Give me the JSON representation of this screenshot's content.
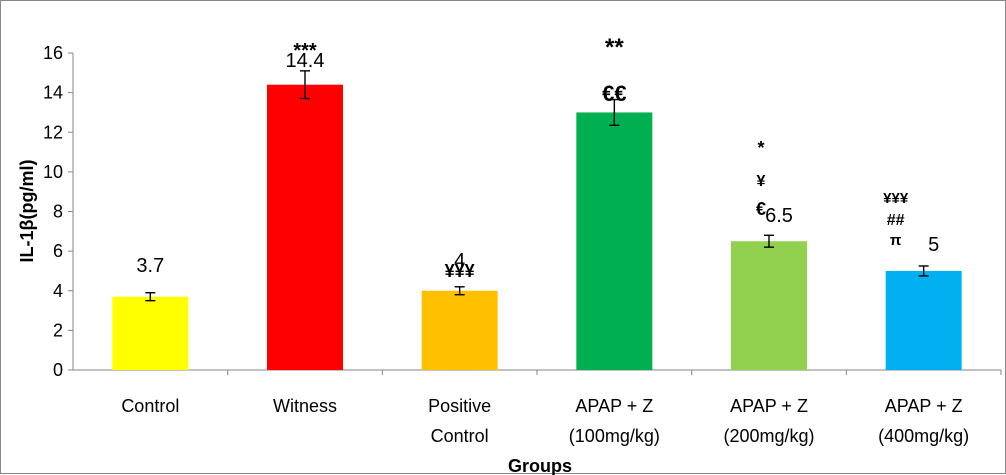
{
  "chart_data": {
    "type": "bar",
    "title": "",
    "xlabel": "Groups",
    "ylabel": "IL-1β(pg/ml)",
    "ylim": [
      0,
      16
    ],
    "yticks": [
      "0",
      "2",
      "4",
      "6",
      "8",
      "10",
      "12",
      "14",
      "16"
    ],
    "grid": false,
    "legend": "none",
    "categories": [
      [
        "Control"
      ],
      [
        "Witness"
      ],
      [
        "Positive",
        "Control"
      ],
      [
        "APAP + Z",
        "(100mg/kg)"
      ],
      [
        "APAP + Z",
        "(200mg/kg)"
      ],
      [
        "APAP + Z",
        "(400mg/kg)"
      ]
    ],
    "values": [
      3.7,
      14.4,
      4.0,
      13.0,
      6.5,
      5.0
    ],
    "errors": [
      0.2,
      0.7,
      0.2,
      0.65,
      0.3,
      0.25
    ],
    "data_labels": [
      "3.7",
      "14.4",
      "4",
      "",
      "6.5",
      "5"
    ],
    "colors": [
      "#FFFF00",
      "#FF0000",
      "#FFC000",
      "#00B050",
      "#92D050",
      "#00B0F0"
    ],
    "annotations": [
      [
        "",
        "",
        "",
        ""
      ],
      [
        "***",
        "",
        "",
        ""
      ],
      [
        "¥¥¥",
        "",
        "",
        ""
      ],
      [
        "**",
        "€€",
        "",
        ""
      ],
      [
        "*",
        "¥",
        "€",
        ""
      ],
      [
        "¥¥¥",
        "##",
        "π",
        ""
      ]
    ]
  }
}
